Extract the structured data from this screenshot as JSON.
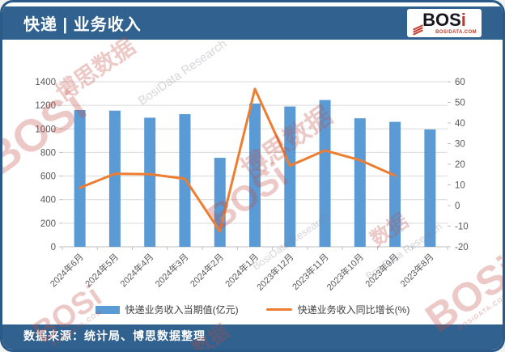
{
  "header": {
    "title": "快递 | 业务收入"
  },
  "logo": {
    "text_main": "BOS",
    "text_accent": "i",
    "domain": "BOSIDATA.COM"
  },
  "chart_data": {
    "type": "bar",
    "title": "快递 | 业务收入",
    "categories": [
      "2024年6月",
      "2024年5月",
      "2024年4月",
      "2024年3月",
      "2024年2月",
      "2024年1月",
      "2023年12月",
      "2023年11月",
      "2023年10月",
      "2023年9月",
      "2023年8月"
    ],
    "series": [
      {
        "name": "快递业务收入当期值(亿元)",
        "type": "bar",
        "axis": "left",
        "color": "#5B9BD5",
        "values": [
          1160,
          1155,
          1095,
          1125,
          755,
          1215,
          1190,
          1245,
          1090,
          1060,
          995
        ]
      },
      {
        "name": "快递业务收入同比增长(%)",
        "type": "line",
        "axis": "right",
        "color": "#ED7D31",
        "values": [
          8.6,
          15.4,
          15.2,
          13.0,
          -12.5,
          56.5,
          19.3,
          26.7,
          22.0,
          14.5,
          null
        ]
      }
    ],
    "left_axis": {
      "min": 0,
      "max": 1400,
      "step": 200
    },
    "right_axis": {
      "min": -20,
      "max": 60,
      "step": 10
    },
    "grid": true,
    "legend_position": "bottom"
  },
  "footer": {
    "source": "数据来源：统计局、博思数据整理"
  },
  "watermarks": {
    "brand": "BOSi",
    "brand_cn": "博思数据",
    "domain": "BOSIDATA.COM",
    "research": "BosiData Research",
    "data_cn": "数据"
  },
  "colors": {
    "band": "#31628F",
    "bar": "#5B9BD5",
    "line": "#ED7D31",
    "grid": "#D9D9D9",
    "axis_text": "#595959"
  }
}
